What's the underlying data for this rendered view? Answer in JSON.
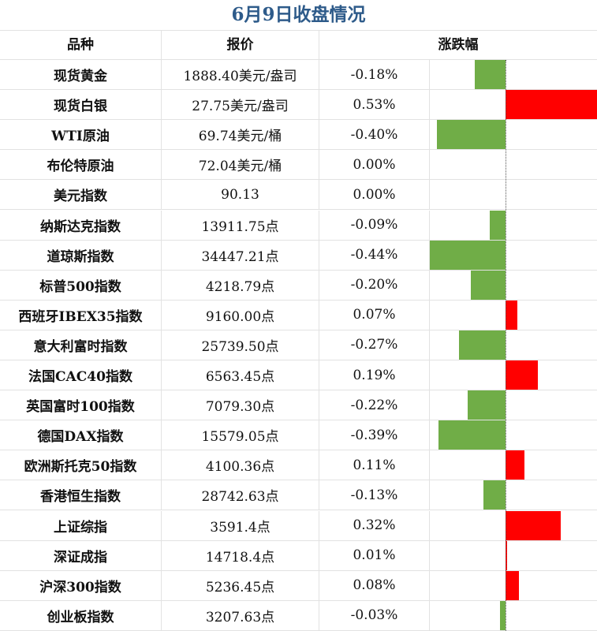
{
  "title": "6月9日收盘情况",
  "headers": [
    "品种",
    "报价",
    "涨跌幅"
  ],
  "colors": {
    "up": "#ff0000",
    "down": "#70ad47",
    "title": "#2e5b8a"
  },
  "rows": [
    {
      "name": "现货黄金",
      "price": "1888.40美元/盎司",
      "change": "-0.18%",
      "value": -0.18
    },
    {
      "name": "现货白银",
      "price": "27.75美元/盎司",
      "change": "0.53%",
      "value": 0.53
    },
    {
      "name": "WTI原油",
      "price": "69.74美元/桶",
      "change": "-0.40%",
      "value": -0.4
    },
    {
      "name": "布伦特原油",
      "price": "72.04美元/桶",
      "change": "0.00%",
      "value": 0.0
    },
    {
      "name": "美元指数",
      "price": "90.13",
      "change": "0.00%",
      "value": 0.0
    },
    {
      "name": "纳斯达克指数",
      "price": "13911.75点",
      "change": "-0.09%",
      "value": -0.09
    },
    {
      "name": "道琼斯指数",
      "price": "34447.21点",
      "change": "-0.44%",
      "value": -0.44
    },
    {
      "name": "标普500指数",
      "price": "4218.79点",
      "change": "-0.20%",
      "value": -0.2
    },
    {
      "name": "西班牙IBEX35指数",
      "price": "9160.00点",
      "change": "0.07%",
      "value": 0.07
    },
    {
      "name": "意大利富时指数",
      "price": "25739.50点",
      "change": "-0.27%",
      "value": -0.27
    },
    {
      "name": "法国CAC40指数",
      "price": "6563.45点",
      "change": "0.19%",
      "value": 0.19
    },
    {
      "name": "英国富时100指数",
      "price": "7079.30点",
      "change": "-0.22%",
      "value": -0.22
    },
    {
      "name": "德国DAX指数",
      "price": "15579.05点",
      "change": "-0.39%",
      "value": -0.39
    },
    {
      "name": "欧洲斯托克50指数",
      "price": "4100.36点",
      "change": "0.11%",
      "value": 0.11
    },
    {
      "name": "香港恒生指数",
      "price": "28742.63点",
      "change": "-0.13%",
      "value": -0.13
    },
    {
      "name": "上证综指",
      "price": "3591.4点",
      "change": "0.32%",
      "value": 0.32
    },
    {
      "name": "深证成指",
      "price": "14718.4点",
      "change": "0.01%",
      "value": 0.01
    },
    {
      "name": "沪深300指数",
      "price": "5236.45点",
      "change": "0.08%",
      "value": 0.08
    },
    {
      "name": "创业板指数",
      "price": "3207.63点",
      "change": "-0.03%",
      "value": -0.03
    }
  ]
}
